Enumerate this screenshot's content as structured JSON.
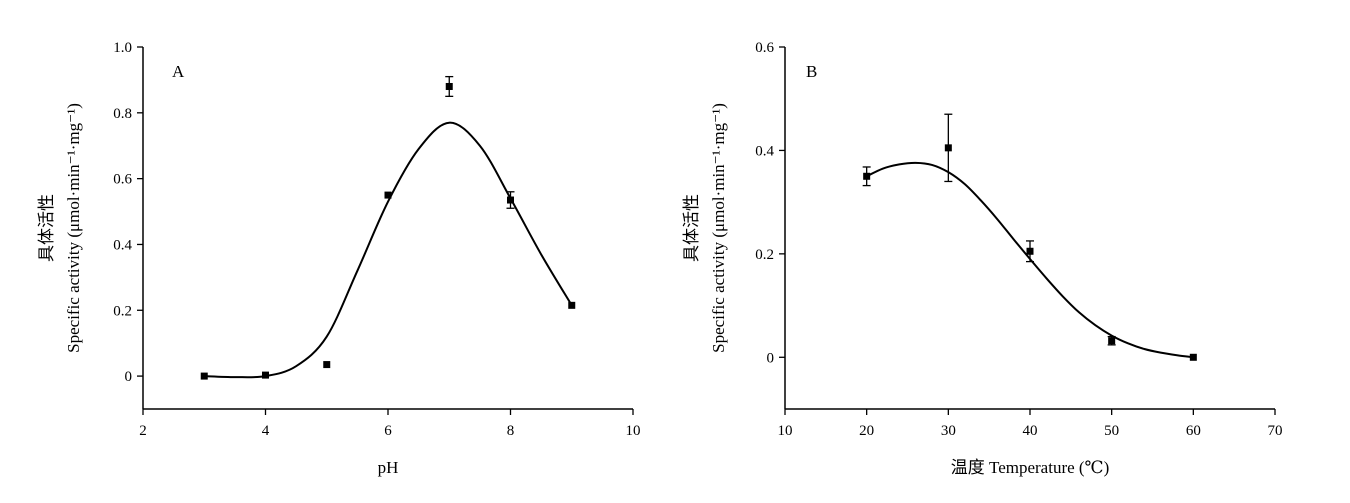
{
  "chart_data": [
    {
      "type": "scatter",
      "panel_label": "A",
      "xlabel": "pH",
      "ylabel_cn": "具体活性",
      "ylabel_en": "Specific activity (μmol·min⁻¹·mg⁻¹)",
      "xlim": [
        2,
        10
      ],
      "ylim": [
        -0.1,
        1.0
      ],
      "xticks": [
        2,
        4,
        6,
        8,
        10
      ],
      "yticks": [
        0,
        0.2,
        0.4,
        0.6,
        0.8,
        1.0
      ],
      "xtick_labels": [
        "2",
        "4",
        "6",
        "8",
        "10"
      ],
      "ytick_labels": [
        "0",
        "0.2",
        "0.4",
        "0.6",
        "0.8",
        "1.0"
      ],
      "series": [
        {
          "points": [
            {
              "x": 3,
              "y": 0.0,
              "err": 0.0
            },
            {
              "x": 4,
              "y": 0.003,
              "err": 0.0
            },
            {
              "x": 5,
              "y": 0.035,
              "err": 0.0
            },
            {
              "x": 6,
              "y": 0.55,
              "err": 0.0
            },
            {
              "x": 7,
              "y": 0.88,
              "err": 0.03
            },
            {
              "x": 8,
              "y": 0.535,
              "err": 0.025
            },
            {
              "x": 9,
              "y": 0.215,
              "err": 0.0
            }
          ]
        }
      ],
      "fit_curve": [
        [
          3,
          0.0
        ],
        [
          3.5,
          -0.003
        ],
        [
          4,
          0.0
        ],
        [
          4.5,
          0.03
        ],
        [
          5,
          0.12
        ],
        [
          5.5,
          0.32
        ],
        [
          6,
          0.53
        ],
        [
          6.5,
          0.69
        ],
        [
          7,
          0.77
        ],
        [
          7.5,
          0.7
        ],
        [
          8,
          0.54
        ],
        [
          8.5,
          0.37
        ],
        [
          9,
          0.215
        ]
      ],
      "grid": false
    },
    {
      "type": "scatter",
      "panel_label": "B",
      "xlabel": "温度 Temperature (℃)",
      "ylabel_cn": "具体活性",
      "ylabel_en": "Specific activity (μmol·min⁻¹·mg⁻¹)",
      "xlim": [
        10,
        70
      ],
      "ylim": [
        -0.1,
        0.6
      ],
      "xticks": [
        10,
        20,
        30,
        40,
        50,
        60,
        70
      ],
      "yticks": [
        0,
        0.2,
        0.4,
        0.6
      ],
      "xtick_labels": [
        "10",
        "20",
        "30",
        "40",
        "50",
        "60",
        "70"
      ],
      "ytick_labels": [
        "0",
        "0.2",
        "0.4",
        "0.6"
      ],
      "series": [
        {
          "points": [
            {
              "x": 20,
              "y": 0.35,
              "err": 0.018
            },
            {
              "x": 30,
              "y": 0.405,
              "err": 0.065
            },
            {
              "x": 40,
              "y": 0.205,
              "err": 0.02
            },
            {
              "x": 50,
              "y": 0.032,
              "err": 0.008
            },
            {
              "x": 60,
              "y": 0.0,
              "err": 0.0
            }
          ]
        }
      ],
      "fit_curve": [
        [
          20,
          0.35
        ],
        [
          22,
          0.365
        ],
        [
          24,
          0.373
        ],
        [
          26,
          0.376
        ],
        [
          28,
          0.372
        ],
        [
          30,
          0.358
        ],
        [
          32,
          0.335
        ],
        [
          34,
          0.303
        ],
        [
          36,
          0.267
        ],
        [
          38,
          0.228
        ],
        [
          40,
          0.19
        ],
        [
          42,
          0.153
        ],
        [
          44,
          0.118
        ],
        [
          46,
          0.087
        ],
        [
          48,
          0.062
        ],
        [
          50,
          0.042
        ],
        [
          52,
          0.027
        ],
        [
          54,
          0.016
        ],
        [
          56,
          0.009
        ],
        [
          58,
          0.004
        ],
        [
          60,
          0.0
        ]
      ],
      "grid": false
    }
  ]
}
